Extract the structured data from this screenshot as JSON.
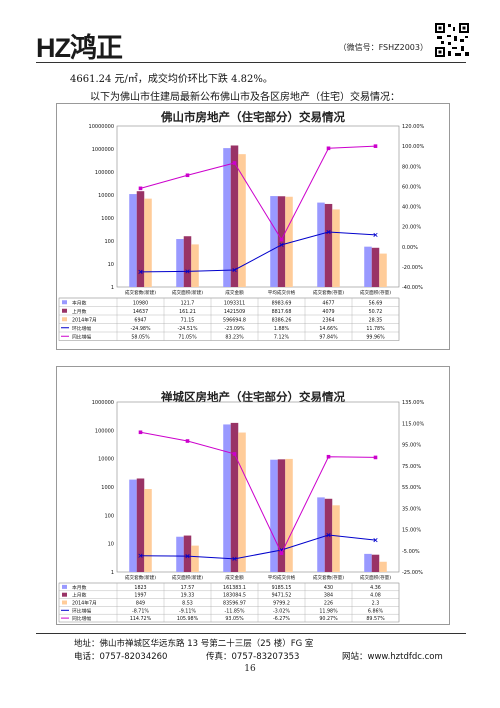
{
  "header": {
    "logo_text": "HZ鸿正",
    "wechat": "（微信号：FSHZ2003）",
    "qr": "qr-code"
  },
  "intro": {
    "line1": "4661.24 元/㎡，成交均价环比下跌 4.82%。",
    "line2": "以下为佛山市住建局最新公布佛山市及各区房地产（住宅）交易情况："
  },
  "footer": {
    "address": "地址：佛山市禅城区华远东路 13 号第二十三层（25 楼）FG 室",
    "phone": "电话：0757-82034260",
    "fax": "传真：0757-83207353",
    "web": "网站：www.hztdfdc.com",
    "page": "16"
  },
  "chart_data": [
    {
      "type": "bar",
      "title": "佛山市房地产（住宅部分）交易情况",
      "categories": [
        "成交套数(新建)",
        "成交面积(新建)",
        "成交金额",
        "平均成交价格",
        "成交套数(存量)",
        "成交面积(存量)"
      ],
      "y_left": {
        "scale": "log",
        "ticks": [
          "1",
          "10",
          "100",
          "1000",
          "10000",
          "100000",
          "1000000",
          "10000000"
        ]
      },
      "y_right": {
        "ticks": [
          "-40.00%",
          "-20.00%",
          "0.00%",
          "20.00%",
          "40.00%",
          "60.00%",
          "80.00%",
          "100.00%",
          "120.00%"
        ],
        "range": [
          -40,
          120
        ]
      },
      "series": [
        {
          "name": "本月数",
          "color": "#9999ff",
          "values": [
            10980,
            121.7,
            1093311,
            8983.69,
            4677,
            56.69
          ],
          "labels": [
            "10980",
            "121.7",
            "1093311",
            "8983.69",
            "4677",
            "56.69"
          ]
        },
        {
          "name": "上月数",
          "color": "#993366",
          "values": [
            14637,
            161.21,
            1421509,
            8817.68,
            4079,
            50.72
          ],
          "labels": [
            "14637",
            "161.21",
            "1421509",
            "8817.68",
            "4079",
            "50.72"
          ]
        },
        {
          "name": "2014年7月",
          "color": "#ffcc99",
          "values": [
            6947,
            71.15,
            596694.8,
            8386.26,
            2364,
            28.35
          ],
          "labels": [
            "6947",
            "71.15",
            "596694.8",
            "8386.26",
            "2364",
            "28.35"
          ]
        }
      ],
      "lines": [
        {
          "name": "环比增幅",
          "color": "#0000cc",
          "values": [
            -24.98,
            -24.51,
            -23.09,
            1.88,
            14.66,
            11.78
          ],
          "labels": [
            "-24.98%",
            "-24.51%",
            "-23.09%",
            "1.88%",
            "14.66%",
            "11.78%"
          ]
        },
        {
          "name": "同比增幅",
          "color": "#cc00cc",
          "values": [
            58.05,
            71.05,
            83.23,
            7.12,
            97.84,
            99.96
          ],
          "labels": [
            "58.05%",
            "71.05%",
            "83.23%",
            "7.12%",
            "97.84%",
            "99.96%"
          ]
        }
      ]
    },
    {
      "type": "bar",
      "title": "禅城区房地产（住宅部分）交易情况",
      "categories": [
        "成交套数(新建)",
        "成交面积(新建)",
        "成交金额",
        "平均成交价格",
        "成交套数(存量)",
        "成交面积(存量)"
      ],
      "y_left": {
        "scale": "log",
        "ticks": [
          "1",
          "10",
          "100",
          "1000",
          "10000",
          "100000",
          "1000000"
        ]
      },
      "y_right": {
        "ticks": [
          "-25.00%",
          "-5.00%",
          "15.00%",
          "35.00%",
          "55.00%",
          "75.00%",
          "95.00%",
          "115.00%",
          "135.00%"
        ],
        "range": [
          -25,
          145
        ]
      },
      "series": [
        {
          "name": "本月数",
          "color": "#9999ff",
          "values": [
            1823,
            17.57,
            161383.1,
            9185.15,
            430,
            4.36
          ],
          "labels": [
            "1823",
            "17.57",
            "161383.1",
            "9185.15",
            "430",
            "4.36"
          ]
        },
        {
          "name": "上月数",
          "color": "#993366",
          "values": [
            1997,
            19.33,
            183084.5,
            9471.52,
            384,
            4.08
          ],
          "labels": [
            "1997",
            "19.33",
            "183084.5",
            "9471.52",
            "384",
            "4.08"
          ]
        },
        {
          "name": "2014年7月",
          "color": "#ffcc99",
          "values": [
            849,
            8.53,
            83596.97,
            9799.2,
            226,
            2.3
          ],
          "labels": [
            "849",
            "8.53",
            "83596.97",
            "9799.2",
            "226",
            "2.3"
          ]
        }
      ],
      "lines": [
        {
          "name": "环比增幅",
          "color": "#0000cc",
          "values": [
            -8.71,
            -9.11,
            -11.85,
            -3.02,
            11.98,
            6.86
          ],
          "labels": [
            "-8.71%",
            "-9.11%",
            "-11.85%",
            "-3.02%",
            "11.98%",
            "6.86%"
          ]
        },
        {
          "name": "同比增幅",
          "color": "#cc00cc",
          "values": [
            114.72,
            105.98,
            93.05,
            -6.27,
            90.27,
            89.57
          ],
          "labels": [
            "114.72%",
            "105.98%",
            "93.05%",
            "-6.27%",
            "90.27%",
            "89.57%"
          ]
        }
      ]
    }
  ]
}
